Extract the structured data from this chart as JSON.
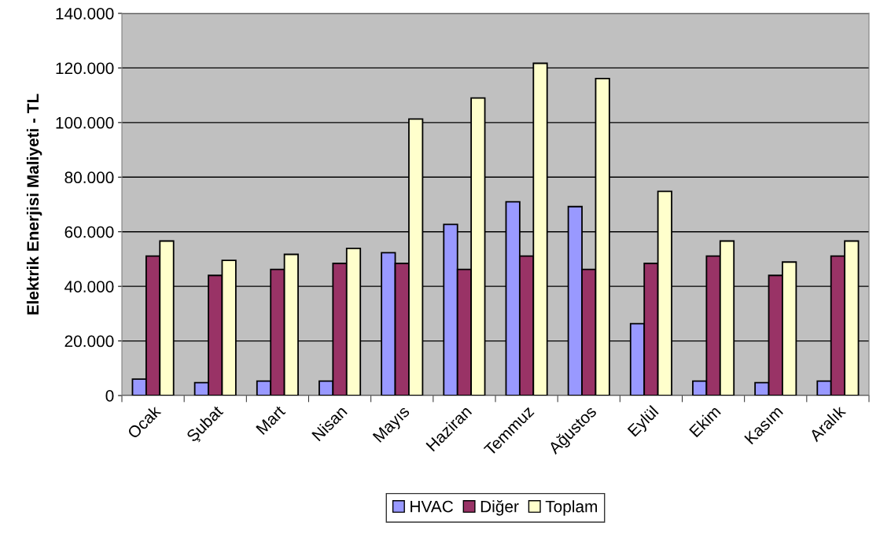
{
  "chart_data": {
    "type": "bar",
    "ylabel": "Elektrik Enerjisi Maliyeti - TL",
    "categories": [
      "Ocak",
      "Şubat",
      "Mart",
      "Nisan",
      "Mayıs",
      "Haziran",
      "Temmuz",
      "Ağustos",
      "Eylül",
      "Ekim",
      "Kasım",
      "Aralık"
    ],
    "series": [
      {
        "name": "HVAC",
        "color": "#9999ff",
        "values": [
          6000,
          4700,
          5300,
          5300,
          52300,
          62700,
          71000,
          69200,
          26300,
          5300,
          4700,
          5300
        ]
      },
      {
        "name": "Diğer",
        "color": "#993366",
        "values": [
          51100,
          44000,
          46200,
          48400,
          48400,
          46200,
          51100,
          46200,
          48400,
          51100,
          44000,
          51100
        ]
      },
      {
        "name": "Toplam",
        "color": "#ffffcc",
        "values": [
          56600,
          49500,
          51700,
          53900,
          101300,
          109000,
          121700,
          116100,
          74800,
          56600,
          48900,
          56600
        ]
      }
    ],
    "ylim": [
      0,
      140000
    ],
    "yticks": [
      0,
      {
        "value": 20000,
        "label": "20.000"
      },
      {
        "value": 40000,
        "label": "40.000"
      },
      {
        "value": 60000,
        "label": "60.000"
      },
      {
        "value": 80000,
        "label": "80.000"
      },
      {
        "value": 100000,
        "label": "100.000"
      },
      {
        "value": 120000,
        "label": "120.000"
      },
      {
        "value": 140000,
        "label": "140.000"
      }
    ],
    "grid": "y",
    "legend": "bottom"
  }
}
